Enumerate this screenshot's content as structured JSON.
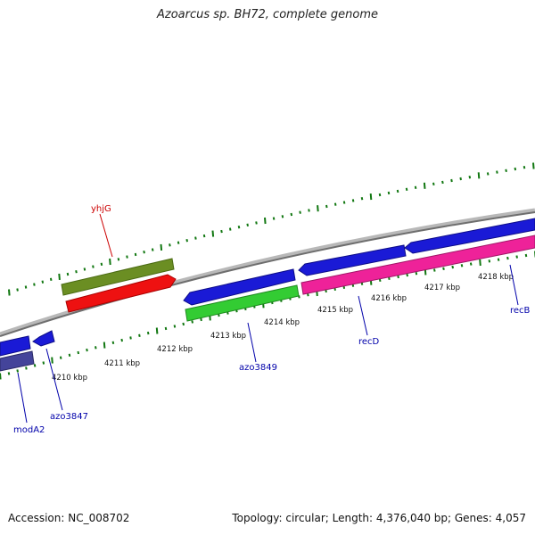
{
  "title": "Azoarcus sp. BH72, complete genome",
  "footer": {
    "accession": "Accession: NC_008702",
    "stats": "Topology: circular; Length: 4,376,040 bp; Genes: 4,057"
  },
  "colors": {
    "backbone": "#8a8a8a",
    "tick": "#117711",
    "gene_blue": "#1a1ad6",
    "gene_navy": "#44449a",
    "gene_olive": "#6b8e23",
    "gene_red": "#ee1111",
    "gene_green": "#33cc33",
    "gene_pink": "#ee2299",
    "label_blue": "#0000aa",
    "label_red": "#cc0000"
  },
  "scale_labels": [
    "4210 kbp",
    "4211 kbp",
    "4212 kbp",
    "4213 kbp",
    "4214 kbp",
    "4215 kbp",
    "4216 kbp",
    "4217 kbp",
    "4218 kbp"
  ],
  "gene_labels": [
    {
      "text": "yhjG",
      "color": "label_red"
    },
    {
      "text": "modA2",
      "color": "label_blue"
    },
    {
      "text": "azo3847",
      "color": "label_blue"
    },
    {
      "text": "azo3849",
      "color": "label_blue"
    },
    {
      "text": "recD",
      "color": "label_blue"
    },
    {
      "text": "recB",
      "color": "label_blue"
    }
  ]
}
